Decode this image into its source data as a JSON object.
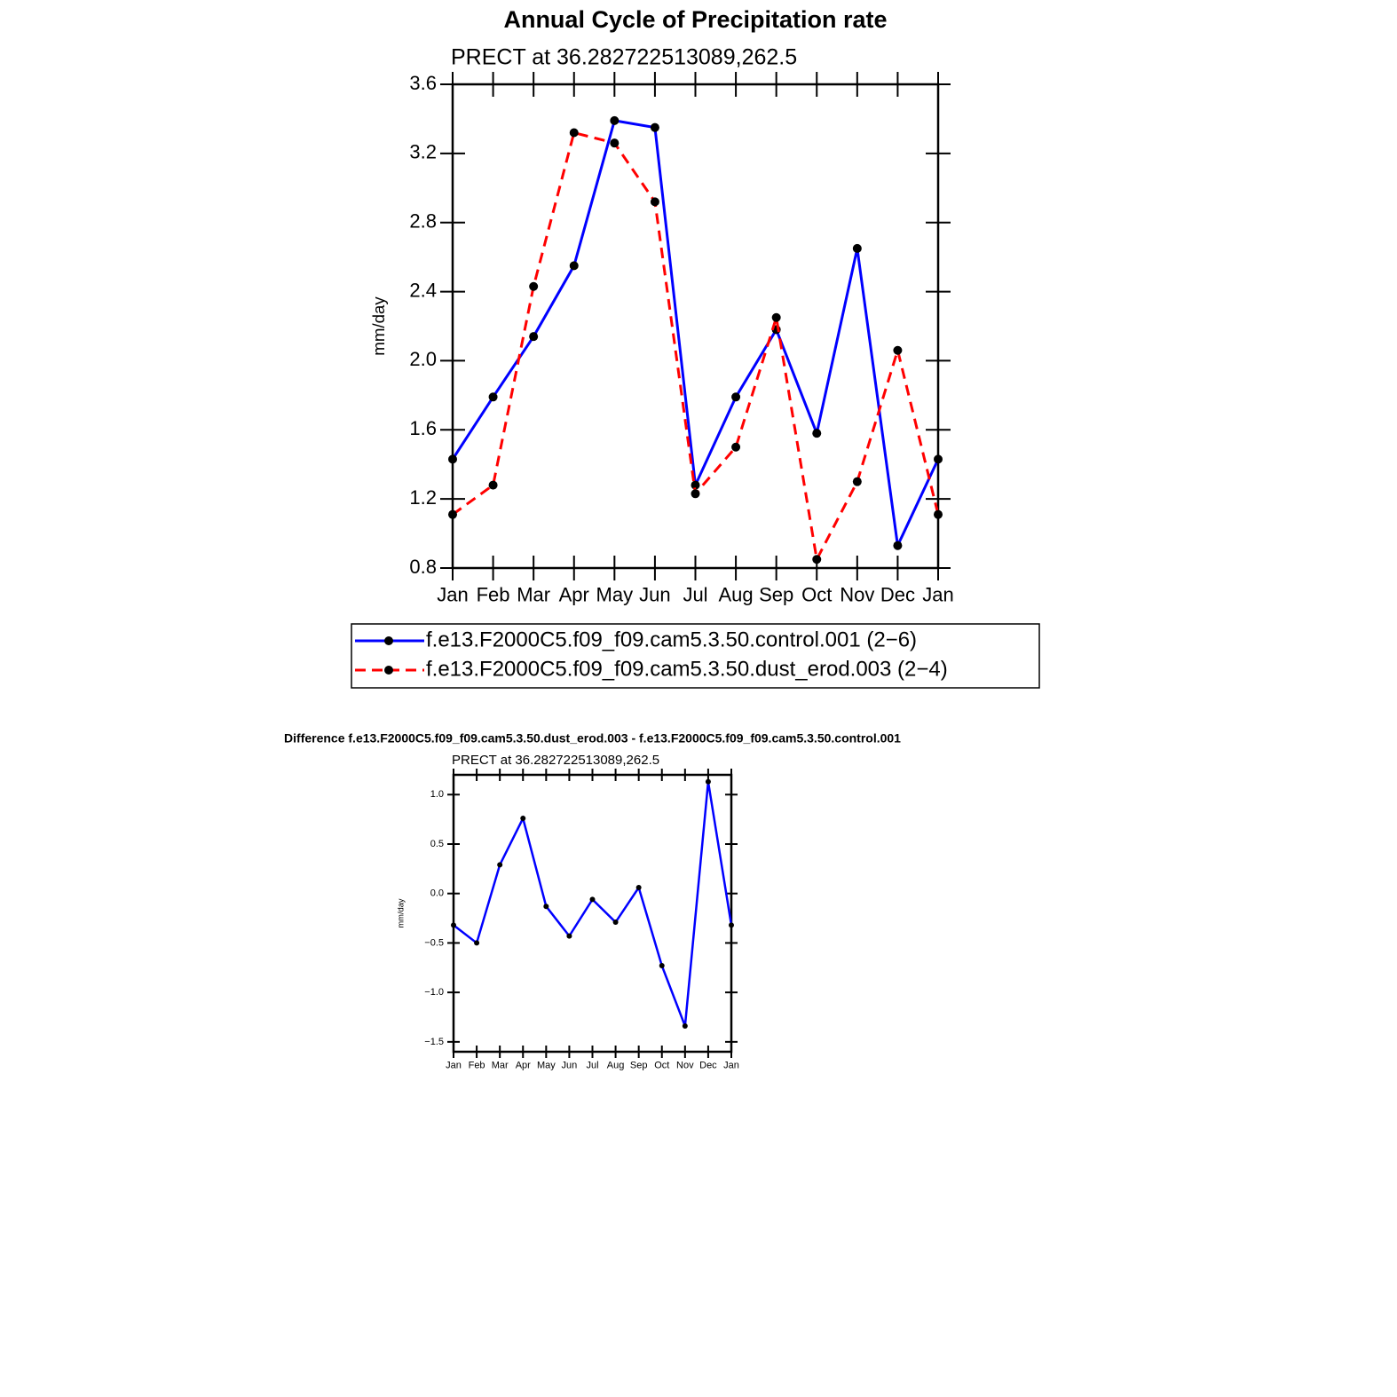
{
  "chart_data": [
    {
      "type": "line",
      "title": "Annual Cycle of Precipitation rate",
      "subtitle": "PRECT at 36.282722513089,262.5",
      "ylabel": "mm/day",
      "categories": [
        "Jan",
        "Feb",
        "Mar",
        "Apr",
        "May",
        "Jun",
        "Jul",
        "Aug",
        "Sep",
        "Oct",
        "Nov",
        "Dec",
        "Jan"
      ],
      "series": [
        {
          "name": "f.e13.F2000C5.f09_f09.cam5.3.50.control.001 (2−6)",
          "color": "#0000ff",
          "line_style": "solid",
          "values": [
            1.43,
            1.79,
            2.14,
            2.55,
            3.39,
            3.35,
            1.28,
            1.79,
            2.18,
            1.58,
            2.65,
            0.93,
            1.43
          ]
        },
        {
          "name": "f.e13.F2000C5.f09_f09.cam5.3.50.dust_erod.003 (2−4)",
          "color": "#ff0000",
          "line_style": "dashed",
          "values": [
            1.11,
            1.28,
            2.43,
            3.32,
            3.26,
            2.92,
            1.23,
            1.5,
            2.25,
            0.85,
            1.3,
            2.06,
            1.11
          ]
        }
      ],
      "ylim": [
        0.8,
        3.6
      ],
      "yticks": [
        0.8,
        1.2,
        1.6,
        {
          "value": 2,
          "label": "2.0"
        },
        2.4,
        2.8,
        3.2,
        3.6
      ]
    },
    {
      "type": "line",
      "title": "Difference f.e13.F2000C5.f09_f09.cam5.3.50.dust_erod.003 - f.e13.F2000C5.f09_f09.cam5.3.50.control.001",
      "subtitle": "PRECT at 36.282722513089,262.5",
      "ylabel": "mm/day",
      "categories": [
        "Jan",
        "Feb",
        "Mar",
        "Apr",
        "May",
        "Jun",
        "Jul",
        "Aug",
        "Sep",
        "Oct",
        "Nov",
        "Dec",
        "Jan"
      ],
      "series": [
        {
          "color": "#0000ff",
          "line_style": "solid",
          "values": [
            -0.32,
            -0.5,
            0.29,
            0.76,
            -0.13,
            -0.43,
            -0.06,
            -0.29,
            0.06,
            -0.73,
            -1.34,
            1.13,
            -0.32
          ]
        }
      ],
      "ylim": [
        -1.6,
        1.2
      ],
      "yticks": [
        {
          "value": -1.5,
          "label": "−1.5"
        },
        {
          "value": -1,
          "label": "−1.0"
        },
        {
          "value": -0.5,
          "label": "−0.5"
        },
        {
          "value": 0,
          "label": "0.0"
        },
        0.5,
        {
          "value": 1,
          "label": "1.0"
        }
      ]
    }
  ]
}
